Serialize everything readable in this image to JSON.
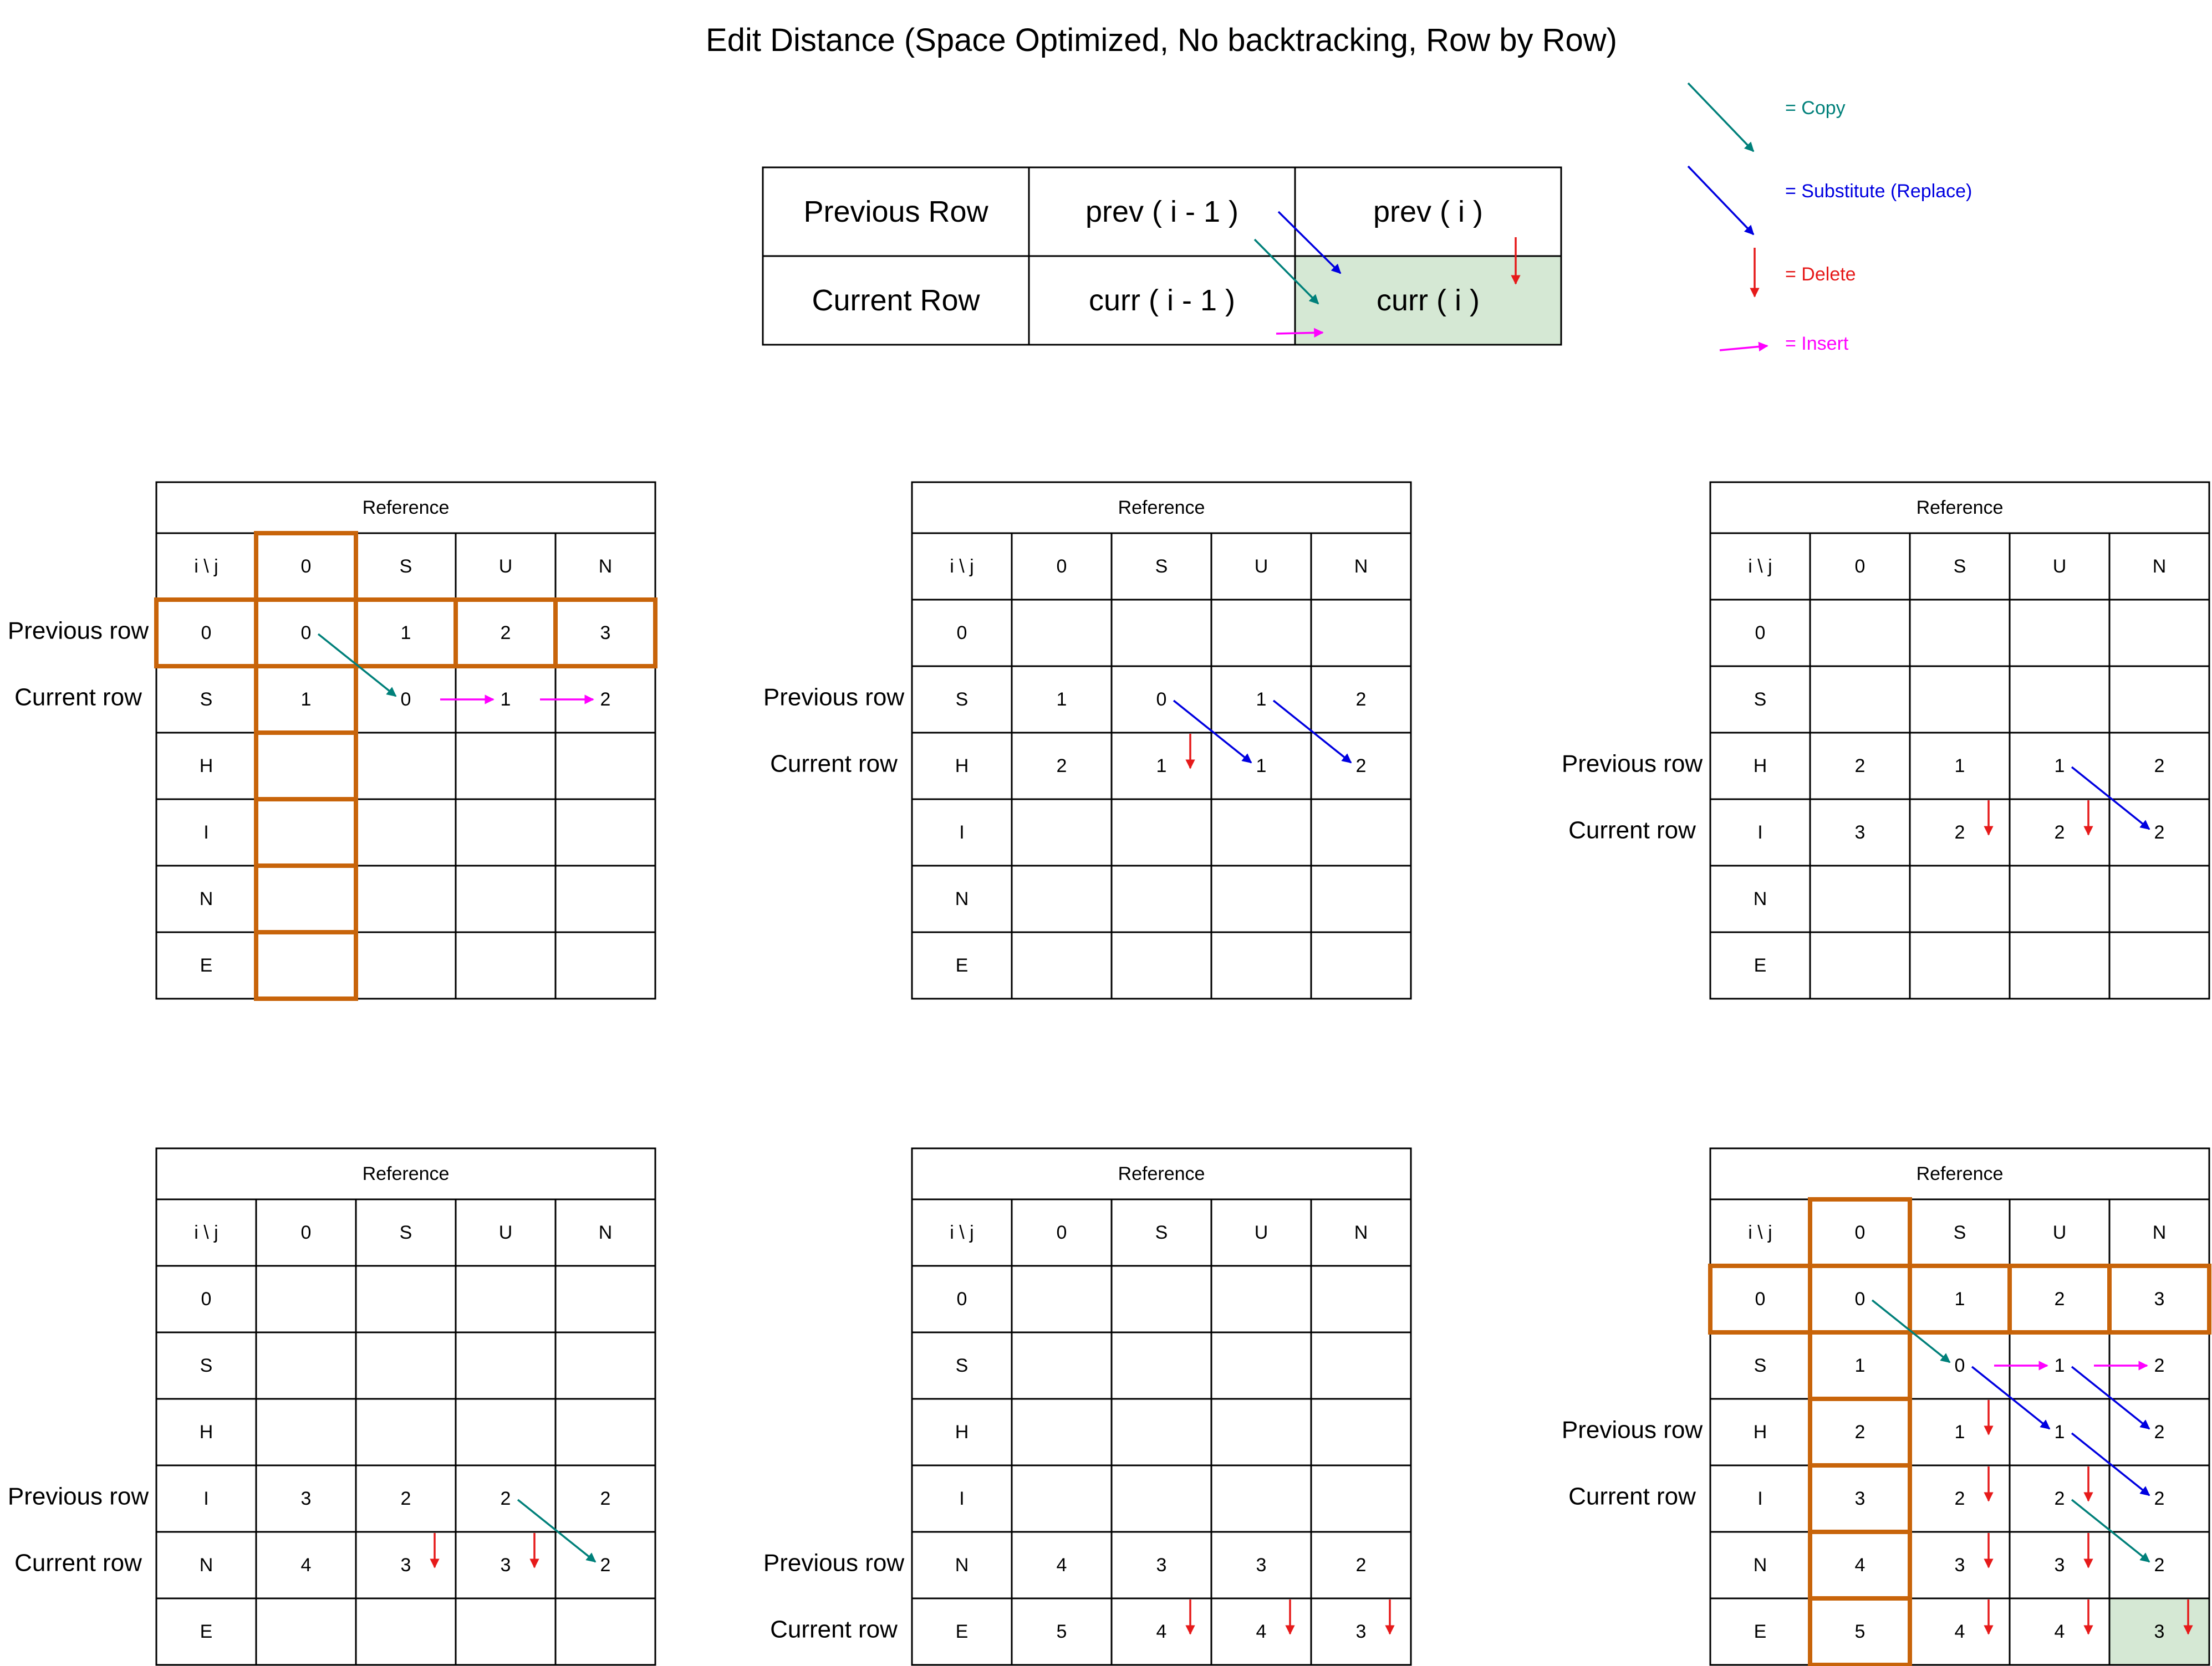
{
  "title": "Edit Distance (Space Optimized, No backtracking, Row by Row)",
  "colors": {
    "copy": "#00807a",
    "substitute": "#0000e0",
    "delete": "#e61a1a",
    "insert": "#ff00ff",
    "highlight_border": "#c8640a",
    "highlight_fill": "#d5e8d4"
  },
  "legend": [
    {
      "type": "copy",
      "label": "= Copy"
    },
    {
      "type": "substitute",
      "label": "= Substitute (Replace)"
    },
    {
      "type": "delete",
      "label": "= Delete"
    },
    {
      "type": "insert",
      "label": "= Insert"
    }
  ],
  "key_table": {
    "cells": [
      [
        "Previous Row",
        "prev ( i - 1 )",
        "prev ( i )"
      ],
      [
        "Current Row",
        "curr ( i - 1 )",
        "curr ( i )"
      ]
    ]
  },
  "grid_common": {
    "header": "Reference",
    "corner": "i  \\  j",
    "columns": [
      "0",
      "S",
      "U",
      "N"
    ],
    "rows": [
      "0",
      "S",
      "H",
      "I",
      "N",
      "E"
    ]
  },
  "grids": [
    {
      "row_labels": [
        {
          "text": "Previous row",
          "row": 0
        },
        {
          "text": "Current row",
          "row": 1
        }
      ],
      "values": [
        [
          "0",
          "1",
          "2",
          "3"
        ],
        [
          "1",
          "0",
          "1",
          "2"
        ],
        [
          "",
          "",
          "",
          ""
        ],
        [
          "",
          "",
          "",
          ""
        ],
        [
          "",
          "",
          "",
          ""
        ],
        [
          "",
          "",
          "",
          ""
        ]
      ],
      "highlight_row": 0,
      "highlight_col": 0,
      "arrows": [
        {
          "type": "copy",
          "from": [
            0,
            0
          ],
          "to": [
            1,
            1
          ]
        },
        {
          "type": "insert",
          "from": [
            1,
            1
          ],
          "to": [
            1,
            2
          ]
        },
        {
          "type": "insert",
          "from": [
            1,
            2
          ],
          "to": [
            1,
            3
          ]
        }
      ]
    },
    {
      "row_labels": [
        {
          "text": "Previous row",
          "row": 1
        },
        {
          "text": "Current row",
          "row": 2
        }
      ],
      "values": [
        [
          "",
          "",
          "",
          ""
        ],
        [
          "1",
          "0",
          "1",
          "2"
        ],
        [
          "2",
          "1",
          "1",
          "2"
        ],
        [
          "",
          "",
          "",
          ""
        ],
        [
          "",
          "",
          "",
          ""
        ],
        [
          "",
          "",
          "",
          ""
        ]
      ],
      "arrows": [
        {
          "type": "substitute",
          "from": [
            1,
            1
          ],
          "to": [
            2,
            2
          ]
        },
        {
          "type": "substitute",
          "from": [
            1,
            2
          ],
          "to": [
            2,
            3
          ]
        },
        {
          "type": "delete",
          "from": [
            1,
            1
          ],
          "to": [
            2,
            1
          ]
        }
      ]
    },
    {
      "row_labels": [
        {
          "text": "Previous row",
          "row": 2
        },
        {
          "text": "Current row",
          "row": 3
        }
      ],
      "values": [
        [
          "",
          "",
          "",
          ""
        ],
        [
          "",
          "",
          "",
          ""
        ],
        [
          "2",
          "1",
          "1",
          "2"
        ],
        [
          "3",
          "2",
          "2",
          "2"
        ],
        [
          "",
          "",
          "",
          ""
        ],
        [
          "",
          "",
          "",
          ""
        ]
      ],
      "arrows": [
        {
          "type": "delete",
          "from": [
            2,
            1
          ],
          "to": [
            3,
            1
          ]
        },
        {
          "type": "delete",
          "from": [
            2,
            2
          ],
          "to": [
            3,
            2
          ]
        },
        {
          "type": "substitute",
          "from": [
            2,
            2
          ],
          "to": [
            3,
            3
          ]
        }
      ]
    },
    {
      "row_labels": [
        {
          "text": "Previous row",
          "row": 3
        },
        {
          "text": "Current row",
          "row": 4
        }
      ],
      "values": [
        [
          "",
          "",
          "",
          ""
        ],
        [
          "",
          "",
          "",
          ""
        ],
        [
          "",
          "",
          "",
          ""
        ],
        [
          "3",
          "2",
          "2",
          "2"
        ],
        [
          "4",
          "3",
          "3",
          "2"
        ],
        [
          "",
          "",
          "",
          ""
        ]
      ],
      "arrows": [
        {
          "type": "delete",
          "from": [
            3,
            1
          ],
          "to": [
            4,
            1
          ]
        },
        {
          "type": "delete",
          "from": [
            3,
            2
          ],
          "to": [
            4,
            2
          ]
        },
        {
          "type": "copy",
          "from": [
            3,
            2
          ],
          "to": [
            4,
            3
          ]
        }
      ]
    },
    {
      "row_labels": [
        {
          "text": "Previous row",
          "row": 4
        },
        {
          "text": "Current row",
          "row": 5
        }
      ],
      "values": [
        [
          "",
          "",
          "",
          ""
        ],
        [
          "",
          "",
          "",
          ""
        ],
        [
          "",
          "",
          "",
          ""
        ],
        [
          "",
          "",
          "",
          ""
        ],
        [
          "4",
          "3",
          "3",
          "2"
        ],
        [
          "5",
          "4",
          "4",
          "3"
        ]
      ],
      "arrows": [
        {
          "type": "delete",
          "from": [
            4,
            1
          ],
          "to": [
            5,
            1
          ]
        },
        {
          "type": "delete",
          "from": [
            4,
            2
          ],
          "to": [
            5,
            2
          ]
        },
        {
          "type": "delete",
          "from": [
            4,
            3
          ],
          "to": [
            5,
            3
          ]
        }
      ]
    },
    {
      "row_labels": [
        {
          "text": "Previous row",
          "row": 2
        },
        {
          "text": "Current row",
          "row": 3
        }
      ],
      "values": [
        [
          "0",
          "1",
          "2",
          "3"
        ],
        [
          "1",
          "0",
          "1",
          "2"
        ],
        [
          "2",
          "1",
          "1",
          "2"
        ],
        [
          "3",
          "2",
          "2",
          "2"
        ],
        [
          "4",
          "3",
          "3",
          "2"
        ],
        [
          "5",
          "4",
          "4",
          "3"
        ]
      ],
      "highlight_row": 0,
      "highlight_col": 0,
      "final_cell": [
        5,
        3
      ],
      "arrows": [
        {
          "type": "copy",
          "from": [
            0,
            0
          ],
          "to": [
            1,
            1
          ]
        },
        {
          "type": "insert",
          "from": [
            1,
            1
          ],
          "to": [
            1,
            2
          ]
        },
        {
          "type": "insert",
          "from": [
            1,
            2
          ],
          "to": [
            1,
            3
          ]
        },
        {
          "type": "delete",
          "from": [
            1,
            1
          ],
          "to": [
            2,
            1
          ]
        },
        {
          "type": "substitute",
          "from": [
            1,
            1
          ],
          "to": [
            2,
            2
          ]
        },
        {
          "type": "substitute",
          "from": [
            1,
            2
          ],
          "to": [
            2,
            3
          ]
        },
        {
          "type": "delete",
          "from": [
            2,
            1
          ],
          "to": [
            3,
            1
          ]
        },
        {
          "type": "delete",
          "from": [
            2,
            2
          ],
          "to": [
            3,
            2
          ]
        },
        {
          "type": "substitute",
          "from": [
            2,
            2
          ],
          "to": [
            3,
            3
          ]
        },
        {
          "type": "delete",
          "from": [
            3,
            1
          ],
          "to": [
            4,
            1
          ]
        },
        {
          "type": "delete",
          "from": [
            3,
            2
          ],
          "to": [
            4,
            2
          ]
        },
        {
          "type": "copy",
          "from": [
            3,
            2
          ],
          "to": [
            4,
            3
          ]
        },
        {
          "type": "delete",
          "from": [
            4,
            1
          ],
          "to": [
            5,
            1
          ]
        },
        {
          "type": "delete",
          "from": [
            4,
            2
          ],
          "to": [
            5,
            2
          ]
        },
        {
          "type": "delete",
          "from": [
            4,
            3
          ],
          "to": [
            5,
            3
          ]
        }
      ]
    }
  ]
}
